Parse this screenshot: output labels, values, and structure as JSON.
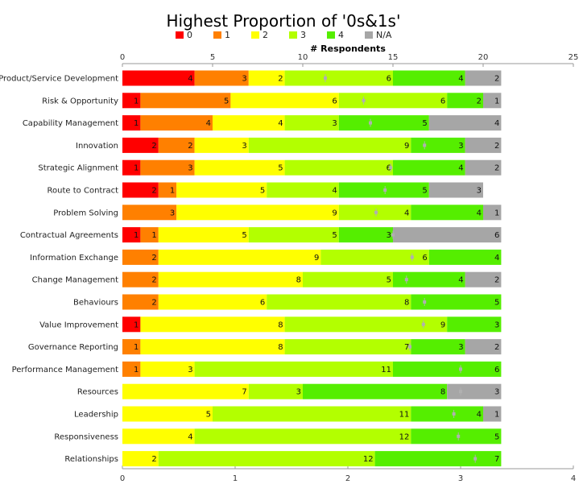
{
  "chart_data": {
    "type": "bar",
    "orientation": "horizontal",
    "stacked": true,
    "title": "Highest Proportion of '0s&1s'",
    "xlabel": "# Respondents",
    "xlim": [
      0,
      25
    ],
    "x_ticks": [
      "0",
      "5",
      "10",
      "15",
      "20",
      "25"
    ],
    "secondary_xlim": [
      0,
      4
    ],
    "secondary_x_ticks": [
      "0",
      "1",
      "2",
      "3",
      "4"
    ],
    "legend_position": "top",
    "grid": false,
    "categories": [
      "Product/Service Development",
      "Risk & Opportunity",
      "Capability Management",
      "Innovation",
      "Strategic Alignment",
      "Route to Contract",
      "Problem Solving",
      "Contractual Agreements",
      "Information Exchange",
      "Change Management",
      "Behaviours",
      "Value Improvement",
      "Governance Reporting",
      "Performance Management",
      "Resources",
      "Leadership",
      "Responsiveness",
      "Relationships"
    ],
    "series": [
      {
        "name": "0",
        "color": "#ff0000",
        "values": [
          4,
          1,
          1,
          2,
          1,
          2,
          0,
          1,
          0,
          0,
          0,
          1,
          0,
          0,
          0,
          0,
          0,
          0
        ]
      },
      {
        "name": "1",
        "color": "#ff8000",
        "values": [
          3,
          5,
          4,
          2,
          3,
          1,
          3,
          1,
          2,
          2,
          2,
          0,
          1,
          1,
          0,
          0,
          0,
          0
        ]
      },
      {
        "name": "2",
        "color": "#ffff00",
        "values": [
          2,
          6,
          4,
          3,
          5,
          5,
          9,
          5,
          9,
          8,
          6,
          8,
          8,
          3,
          7,
          5,
          4,
          2
        ]
      },
      {
        "name": "3",
        "color": "#b3ff00",
        "values": [
          6,
          6,
          3,
          9,
          6,
          4,
          4,
          5,
          6,
          5,
          8,
          9,
          7,
          11,
          3,
          11,
          12,
          12
        ]
      },
      {
        "name": "4",
        "color": "#55ee00",
        "values": [
          4,
          2,
          5,
          3,
          4,
          5,
          4,
          3,
          4,
          4,
          5,
          3,
          3,
          6,
          8,
          4,
          5,
          7
        ]
      },
      {
        "name": "N/A",
        "color": "#a6a6a6",
        "values": [
          2,
          1,
          4,
          2,
          2,
          3,
          1,
          6,
          0,
          2,
          0,
          0,
          2,
          0,
          3,
          1,
          0,
          0
        ]
      }
    ],
    "averages": [
      1.8,
      2.14,
      2.2,
      2.68,
      2.38,
      2.33,
      2.25,
      2.4,
      2.57,
      2.52,
      2.68,
      2.67,
      2.55,
      3.0,
      3.0,
      2.94,
      2.98,
      3.13
    ]
  }
}
